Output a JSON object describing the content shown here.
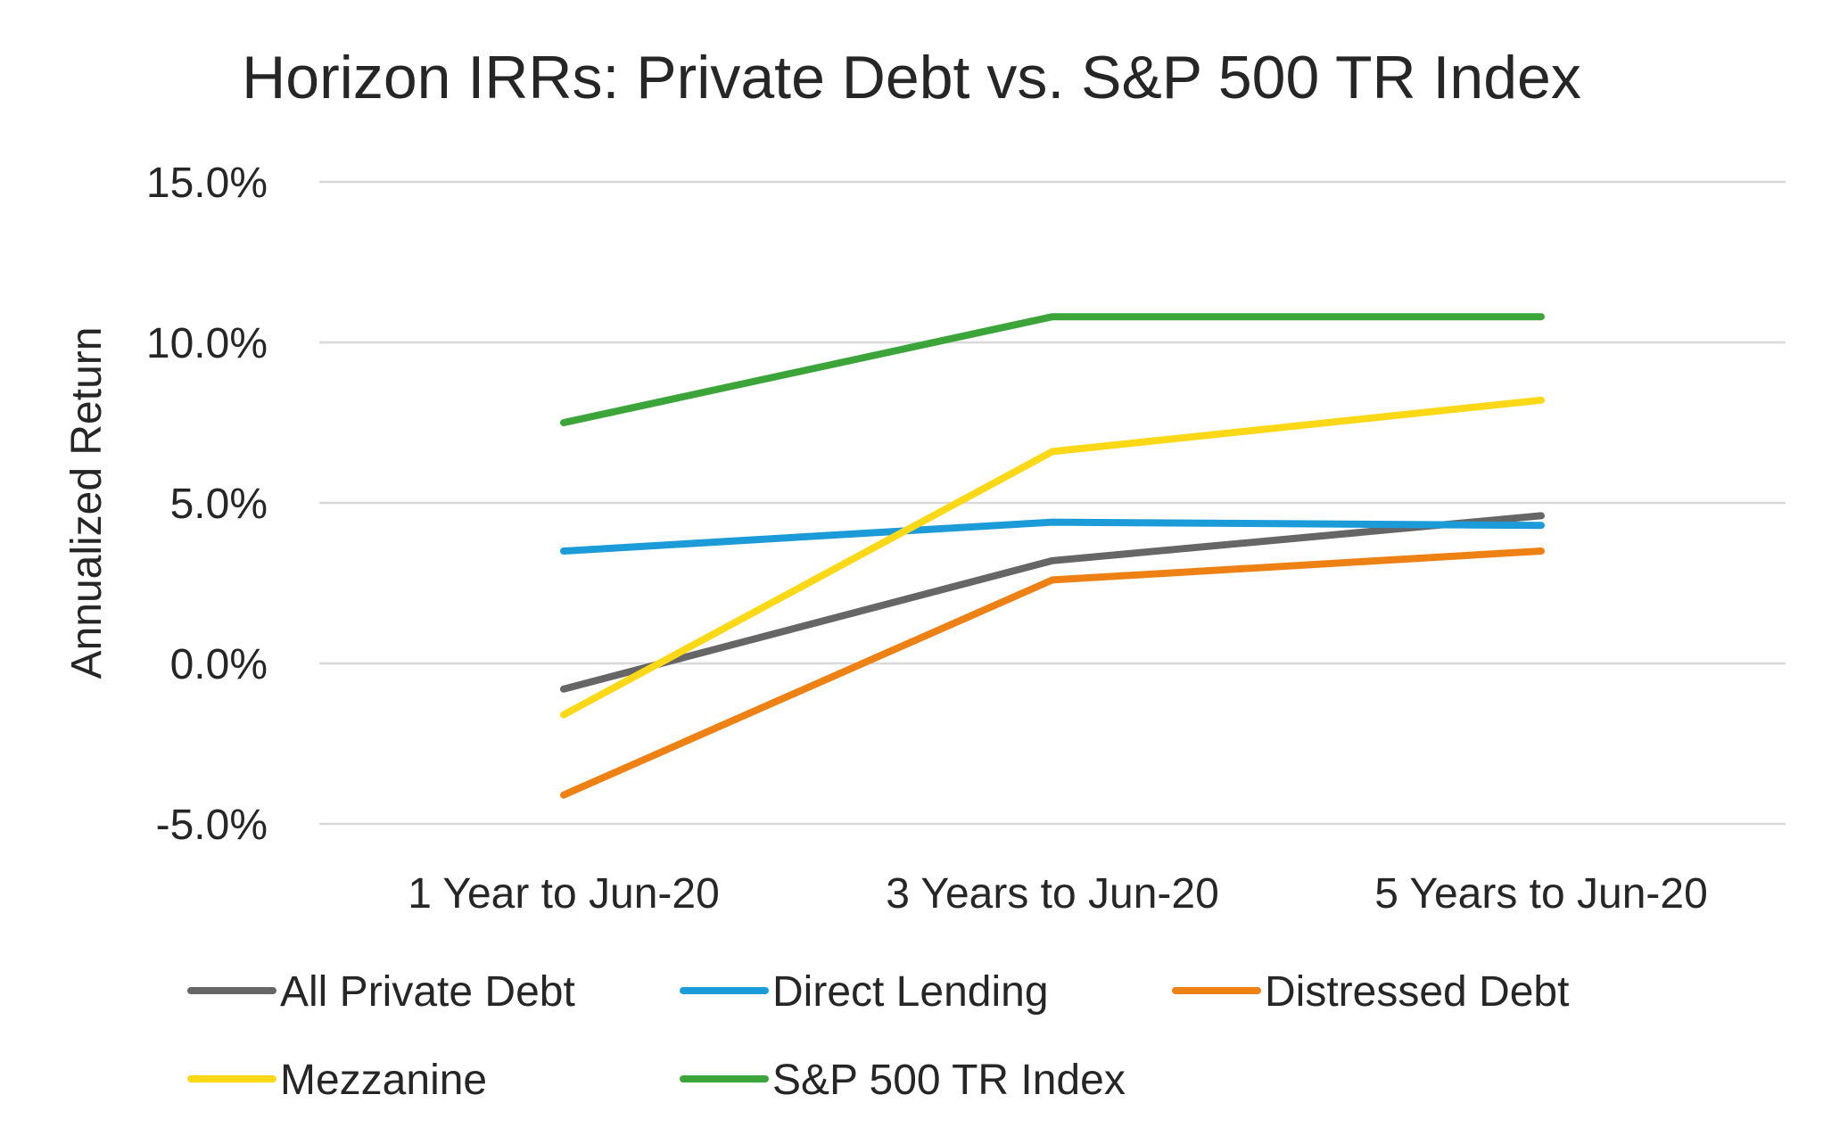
{
  "chart_data": {
    "type": "line",
    "title": "Horizon IRRs: Private Debt vs. S&P 500 TR Index",
    "ylabel": "Annualized Return",
    "xlabel": "",
    "categories": [
      "1 Year to Jun-20",
      "3 Years to Jun-20",
      "5 Years to Jun-20"
    ],
    "ylim": [
      -5,
      15
    ],
    "yticks": [
      -5,
      0,
      5,
      10,
      15
    ],
    "ytick_labels": [
      "-5.0%",
      "0.0%",
      "5.0%",
      "10.0%",
      "15.0%"
    ],
    "grid": true,
    "legend_position": "bottom",
    "series": [
      {
        "name": "All Private Debt",
        "color": "#666666",
        "values": [
          -0.8,
          3.2,
          4.6
        ]
      },
      {
        "name": "Direct Lending",
        "color": "#1b9bd7",
        "values": [
          3.5,
          4.4,
          4.3
        ]
      },
      {
        "name": "Distressed Debt",
        "color": "#ee8114",
        "values": [
          -4.1,
          2.6,
          3.5
        ]
      },
      {
        "name": "Mezzanine",
        "color": "#fcd817",
        "values": [
          -1.6,
          6.6,
          8.2
        ]
      },
      {
        "name": "S&P 500 TR Index",
        "color": "#3ba53a",
        "values": [
          7.5,
          10.8,
          10.8
        ]
      }
    ]
  }
}
